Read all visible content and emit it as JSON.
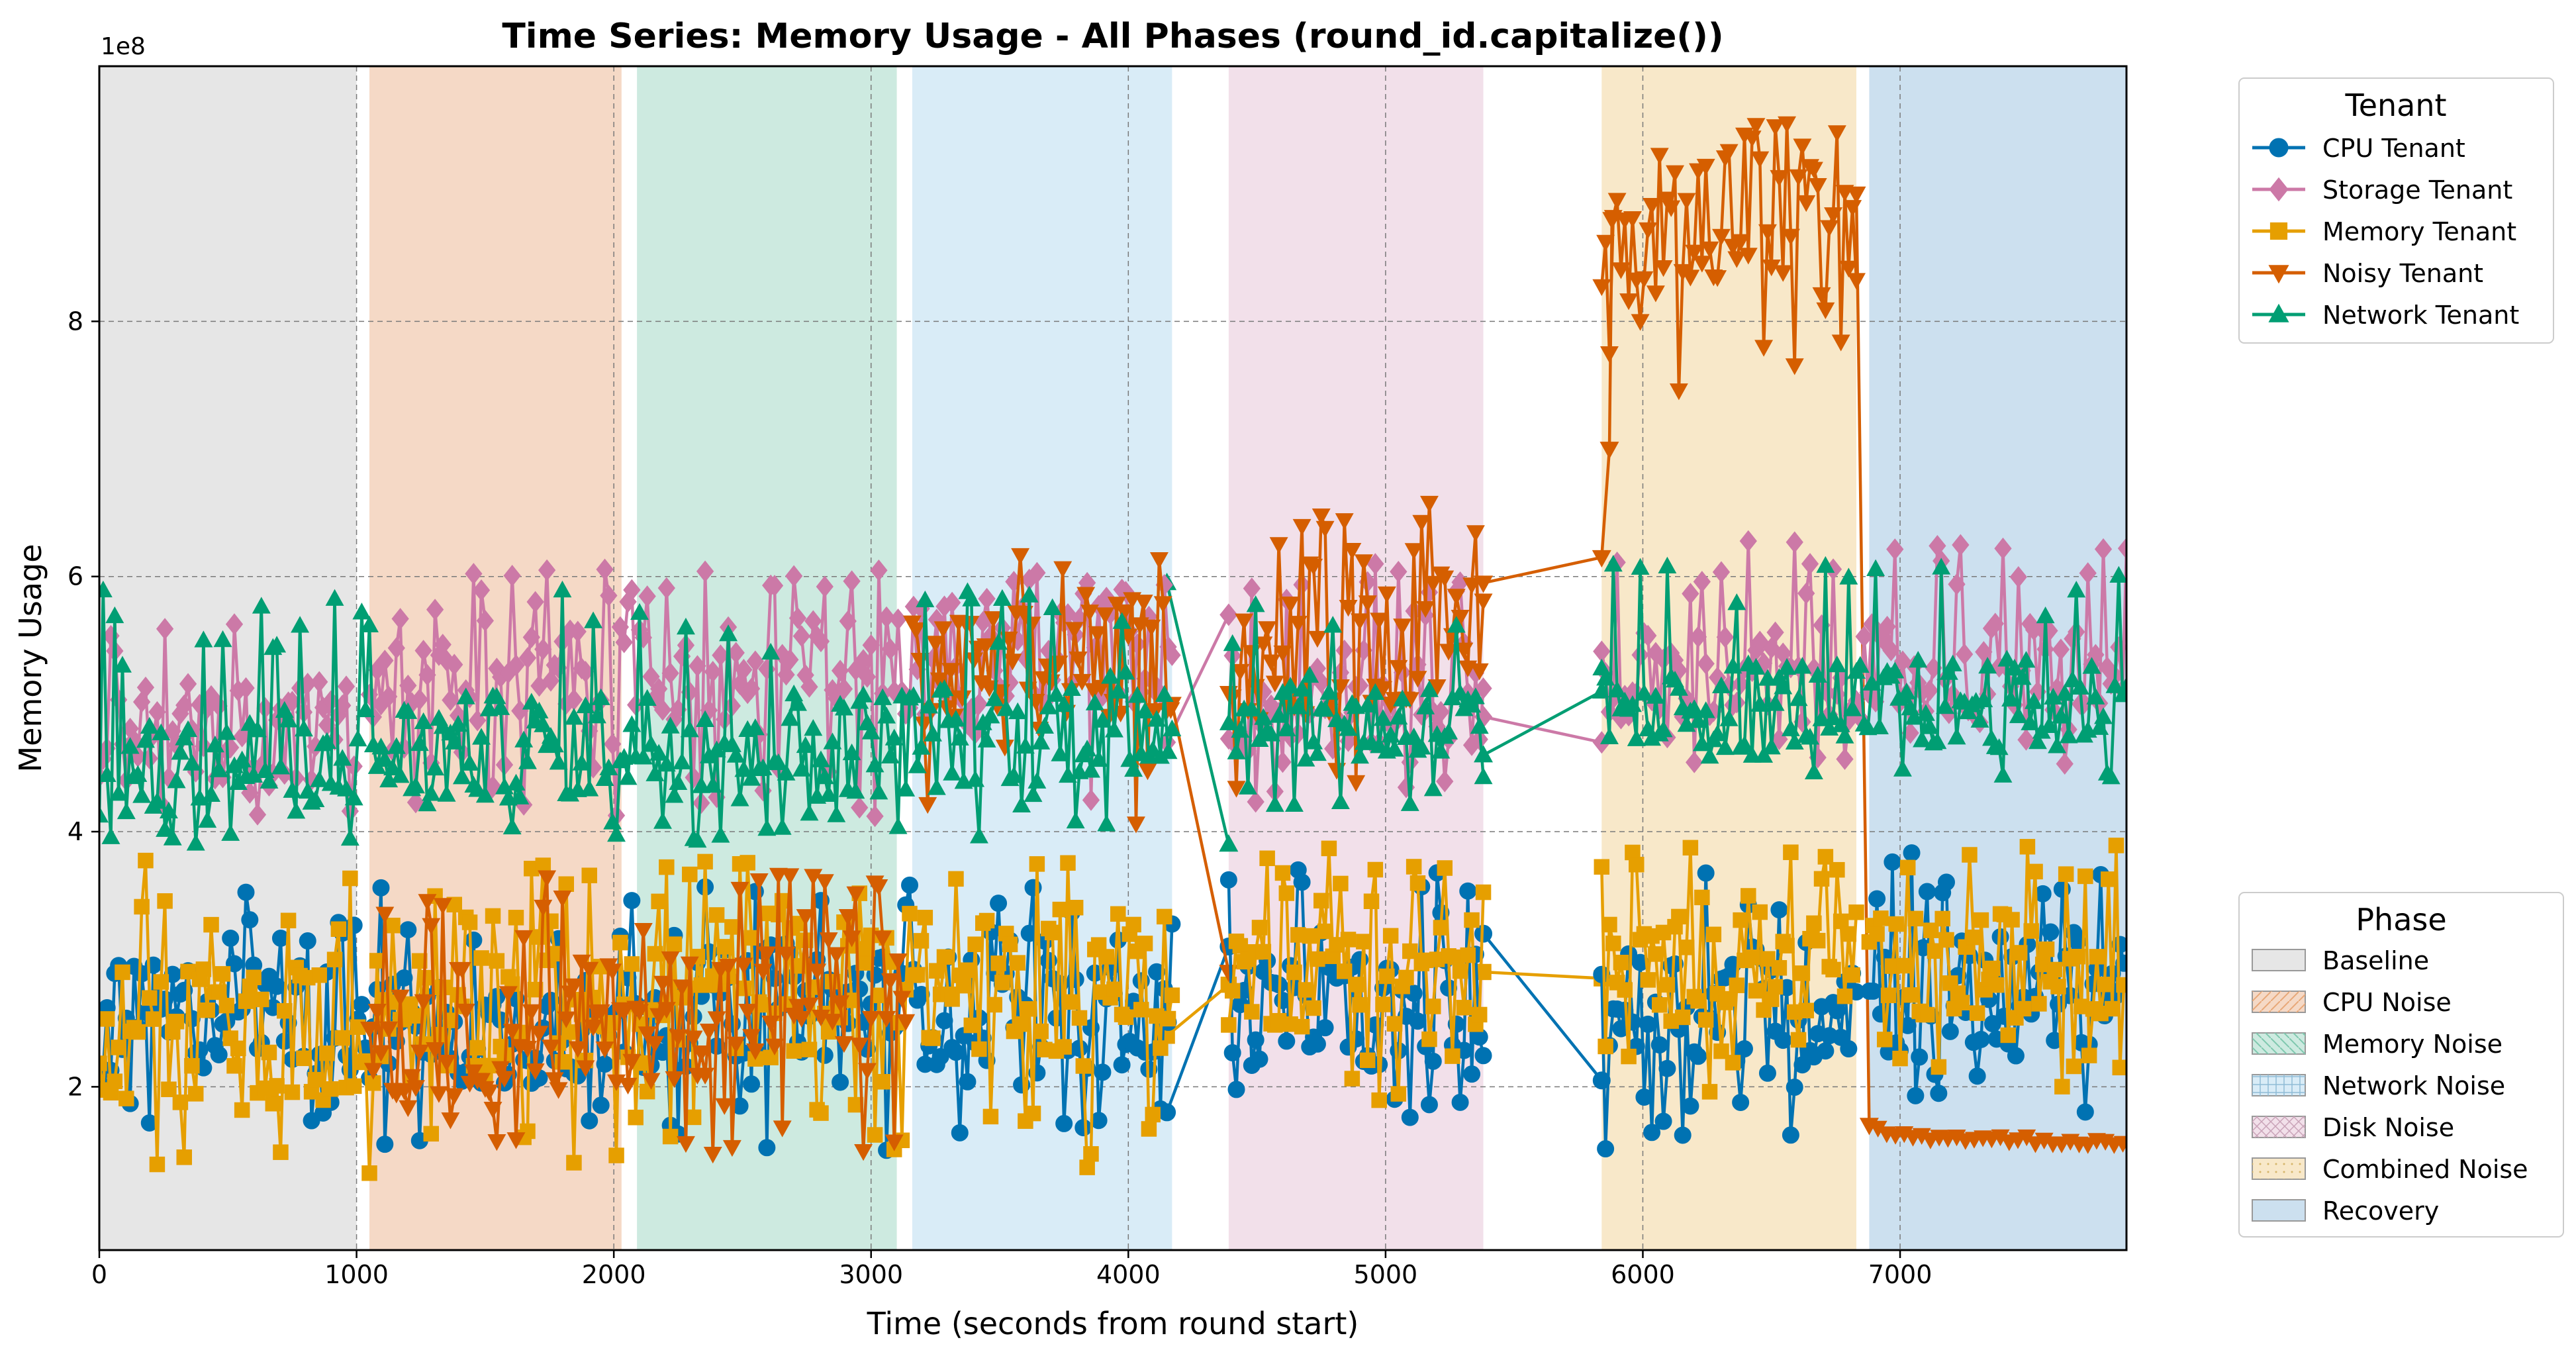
{
  "chart_data": {
    "type": "line",
    "title": "Time Series: Memory Usage - All Phases (round_id.capitalize())",
    "xlabel": "Time (seconds from round start)",
    "ylabel": "Memory Usage",
    "y_offset_text": "1e8",
    "xlim": [
      0,
      7880
    ],
    "ylim": [
      0.72,
      10.0
    ],
    "y_unit_multiplier": 100000000,
    "x_ticks": [
      0,
      1000,
      2000,
      3000,
      4000,
      5000,
      6000,
      7000
    ],
    "x_tick_labels": [
      "0",
      "1000",
      "2000",
      "3000",
      "4000",
      "5000",
      "6000",
      "7000"
    ],
    "y_ticks": [
      2,
      4,
      6,
      8
    ],
    "y_tick_labels": [
      "2",
      "4",
      "6",
      "8"
    ],
    "grid": true,
    "phases": [
      {
        "name": "Baseline",
        "start": 0,
        "end": 1000,
        "color": "#e6e6e6"
      },
      {
        "name": "CPU Noise",
        "start": 1050,
        "end": 2030,
        "color": "#f5d9c6"
      },
      {
        "name": "Memory Noise",
        "start": 2090,
        "end": 3100,
        "color": "#cdeae0"
      },
      {
        "name": "Network Noise",
        "start": 3160,
        "end": 4170,
        "color": "#d9ecf7"
      },
      {
        "name": "Disk Noise",
        "start": 4390,
        "end": 5380,
        "color": "#f2e0ea"
      },
      {
        "name": "Combined Noise",
        "start": 5840,
        "end": 6830,
        "color": "#f8e8c9"
      },
      {
        "name": "Recovery",
        "start": 6880,
        "end": 7880,
        "color": "#cce0ef"
      }
    ],
    "series": [
      {
        "name": "CPU Tenant",
        "color": "#0072b2",
        "marker": "circle",
        "segments": [
          {
            "x0": 0,
            "x1": 4170,
            "points": [
              [
                0,
                2.5
              ],
              [
                600,
                2.6
              ],
              [
                1300,
                2.4
              ],
              [
                2000,
                2.5
              ],
              [
                2600,
                2.7
              ],
              [
                3300,
                2.6
              ],
              [
                4170,
                2.5
              ]
            ],
            "mean": 2.6,
            "lo": 1.5,
            "hi": 3.6
          },
          {
            "x0": 4390,
            "x1": 5380,
            "points": [
              [
                4390,
                2.6
              ],
              [
                5380,
                2.6
              ]
            ],
            "mean": 2.7,
            "lo": 1.6,
            "hi": 3.7
          },
          {
            "x0": 5840,
            "x1": 6830,
            "points": [
              [
                5840,
                2.6
              ],
              [
                6830,
                2.7
              ]
            ],
            "mean": 2.8,
            "lo": 1.5,
            "hi": 3.8
          },
          {
            "x0": 6880,
            "x1": 7880,
            "points": [
              [
                6880,
                2.7
              ],
              [
                7880,
                2.8
              ]
            ],
            "mean": 2.9,
            "lo": 1.7,
            "hi": 3.9
          }
        ]
      },
      {
        "name": "Storage Tenant",
        "color": "#cc79a7",
        "marker": "diamond",
        "segments": [
          {
            "x0": 0,
            "x1": 1000,
            "points": [
              [
                0,
                4.8
              ],
              [
                1000,
                4.8
              ]
            ],
            "mean": 4.85,
            "lo": 4.0,
            "hi": 5.9
          },
          {
            "x0": 1050,
            "x1": 4170,
            "points": [
              [
                1050,
                5.0
              ],
              [
                2000,
                5.2
              ],
              [
                3000,
                5.3
              ],
              [
                4170,
                5.4
              ]
            ],
            "mean": 5.3,
            "lo": 4.1,
            "hi": 6.1
          },
          {
            "x0": 4390,
            "x1": 5380,
            "points": [
              [
                4390,
                5.0
              ],
              [
                5380,
                5.1
              ]
            ],
            "mean": 5.1,
            "lo": 4.1,
            "hi": 6.1
          },
          {
            "x0": 5840,
            "x1": 7880,
            "points": [
              [
                5840,
                5.2
              ],
              [
                7880,
                5.3
              ]
            ],
            "mean": 5.4,
            "lo": 4.5,
            "hi": 6.3
          }
        ]
      },
      {
        "name": "Memory Tenant",
        "color": "#e69f00",
        "marker": "square",
        "segments": [
          {
            "x0": 0,
            "x1": 4170,
            "points": [
              [
                0,
                2.4
              ],
              [
                1000,
                2.5
              ],
              [
                2000,
                2.7
              ],
              [
                3000,
                2.8
              ],
              [
                4170,
                2.8
              ]
            ],
            "mean": 2.7,
            "lo": 1.2,
            "hi": 3.8
          },
          {
            "x0": 4390,
            "x1": 5380,
            "points": [
              [
                4390,
                2.9
              ],
              [
                5380,
                2.9
              ]
            ],
            "mean": 3.0,
            "lo": 1.8,
            "hi": 3.9
          },
          {
            "x0": 5840,
            "x1": 6830,
            "points": [
              [
                5840,
                2.9
              ],
              [
                6830,
                3.0
              ]
            ],
            "mean": 3.0,
            "lo": 1.9,
            "hi": 3.9
          },
          {
            "x0": 6880,
            "x1": 7880,
            "points": [
              [
                6880,
                2.9
              ],
              [
                7880,
                3.0
              ]
            ],
            "mean": 3.0,
            "lo": 1.9,
            "hi": 3.9
          }
        ]
      },
      {
        "name": "Noisy Tenant",
        "color": "#d55e00",
        "marker": "triangle-down",
        "segments": [
          {
            "x0": 1050,
            "x1": 3140,
            "points": [
              [
                1050,
                2.4
              ],
              [
                2000,
                2.5
              ],
              [
                3140,
                2.8
              ]
            ],
            "mean": 2.6,
            "lo": 1.3,
            "hi": 3.7
          },
          {
            "x0": 3160,
            "x1": 4170,
            "points": [
              [
                3160,
                5.2
              ],
              [
                4170,
                5.4
              ]
            ],
            "mean": 5.3,
            "lo": 4.0,
            "hi": 6.2
          },
          {
            "x0": 4390,
            "x1": 5380,
            "points": [
              [
                4390,
                5.3
              ],
              [
                5380,
                5.6
              ]
            ],
            "mean": 5.5,
            "lo": 4.3,
            "hi": 6.6
          },
          {
            "x0": 5840,
            "x1": 6830,
            "points": [
              [
                5840,
                8.7
              ],
              [
                6830,
                8.8
              ]
            ],
            "mean": 8.75,
            "lo": 7.2,
            "hi": 9.6
          },
          {
            "x0": 6880,
            "x1": 7880,
            "points": [
              [
                6880,
                1.68
              ],
              [
                7000,
                1.62
              ],
              [
                7880,
                1.56
              ]
            ],
            "mean": 1.6,
            "lo": 1.55,
            "hi": 1.7
          }
        ]
      },
      {
        "name": "Network Tenant",
        "color": "#009e73",
        "marker": "triangle-up",
        "segments": [
          {
            "x0": 0,
            "x1": 4170,
            "points": [
              [
                0,
                4.4
              ],
              [
                1000,
                4.6
              ],
              [
                2000,
                4.7
              ],
              [
                3000,
                4.7
              ],
              [
                4170,
                4.9
              ]
            ],
            "mean": 4.7,
            "lo": 3.9,
            "hi": 5.9
          },
          {
            "x0": 4390,
            "x1": 5380,
            "points": [
              [
                4390,
                4.9
              ],
              [
                5380,
                4.8
              ]
            ],
            "mean": 5.0,
            "lo": 4.2,
            "hi": 5.9
          },
          {
            "x0": 5840,
            "x1": 7880,
            "points": [
              [
                5840,
                5.0
              ],
              [
                7880,
                5.0
              ]
            ],
            "mean": 5.0,
            "lo": 4.4,
            "hi": 6.1
          }
        ]
      }
    ],
    "bridges": [
      {
        "series": "CPU Tenant",
        "points": [
          [
            4150,
            1.8
          ],
          [
            4390,
            3.1
          ]
        ]
      },
      {
        "series": "CPU Tenant",
        "points": [
          [
            5380,
            3.2
          ],
          [
            5840,
            2.05
          ]
        ]
      },
      {
        "series": "Storage Tenant",
        "points": [
          [
            4150,
            4.7
          ],
          [
            4390,
            5.7
          ]
        ]
      },
      {
        "series": "Storage Tenant",
        "points": [
          [
            5380,
            4.9
          ],
          [
            5840,
            4.7
          ]
        ]
      },
      {
        "series": "Memory Tenant",
        "points": [
          [
            4150,
            2.4
          ],
          [
            4390,
            2.8
          ]
        ]
      },
      {
        "series": "Memory Tenant",
        "points": [
          [
            5380,
            2.9
          ],
          [
            5840,
            2.85
          ]
        ]
      },
      {
        "series": "Noisy Tenant",
        "points": [
          [
            4170,
            5.0
          ],
          [
            4390,
            2.9
          ]
        ]
      },
      {
        "series": "Noisy Tenant",
        "points": [
          [
            5380,
            5.95
          ],
          [
            5840,
            6.15
          ],
          [
            5870,
            7.0
          ],
          [
            5880,
            8.8
          ]
        ]
      },
      {
        "series": "Noisy Tenant",
        "points": [
          [
            6830,
            9.0
          ],
          [
            6880,
            1.7
          ]
        ]
      },
      {
        "series": "Network Tenant",
        "points": [
          [
            4150,
            5.95
          ],
          [
            4390,
            3.9
          ]
        ]
      },
      {
        "series": "Network Tenant",
        "points": [
          [
            5380,
            4.6
          ],
          [
            5840,
            5.1
          ]
        ]
      }
    ]
  },
  "legends": {
    "tenant": {
      "title": "Tenant",
      "items": [
        "CPU Tenant",
        "Storage Tenant",
        "Memory Tenant",
        "Noisy Tenant",
        "Network Tenant"
      ]
    },
    "phase": {
      "title": "Phase",
      "items": [
        "Baseline",
        "CPU Noise",
        "Memory Noise",
        "Network Noise",
        "Disk Noise",
        "Combined Noise",
        "Recovery"
      ]
    }
  }
}
